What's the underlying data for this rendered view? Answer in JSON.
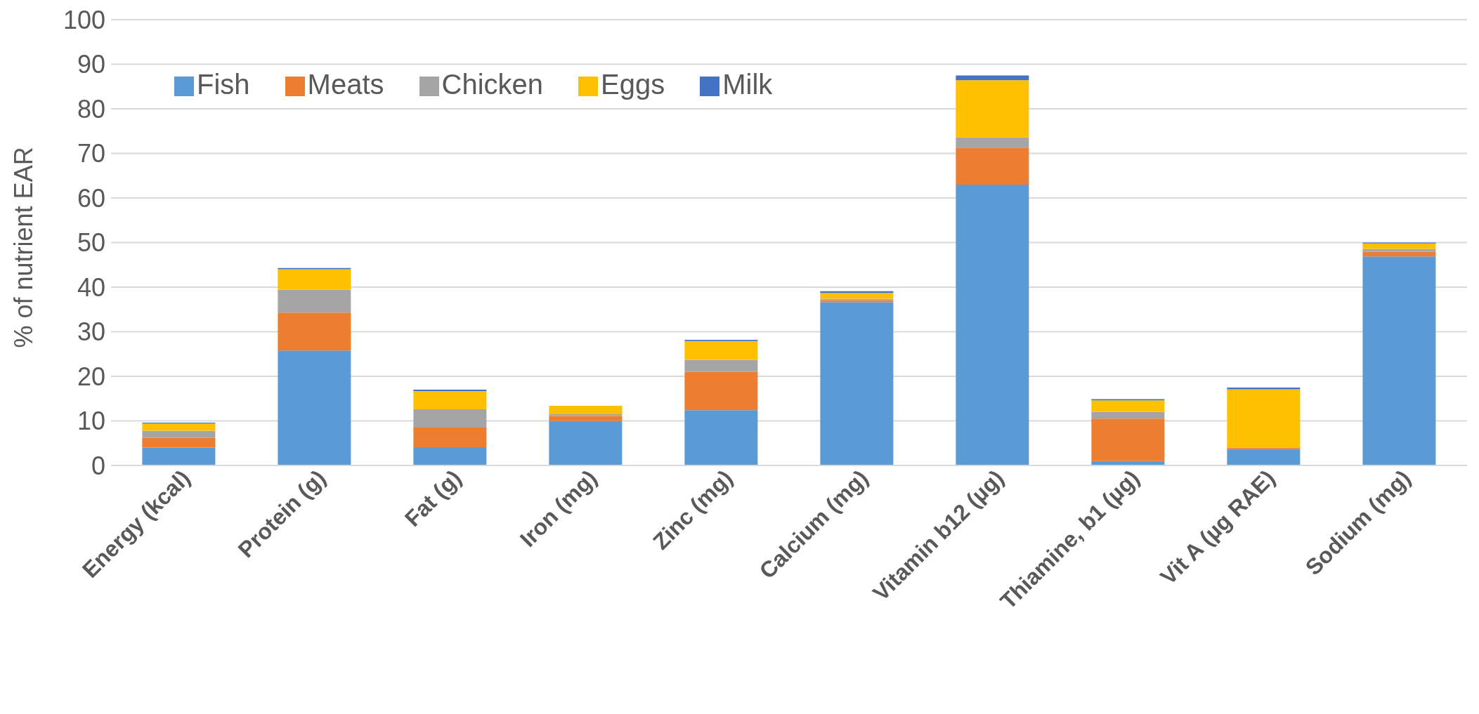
{
  "chart_data": {
    "type": "bar",
    "stacked": true,
    "ylabel": "% of nutrient EAR",
    "categories": [
      "Energy (kcal)",
      "Protein (g)",
      "Fat (g)",
      "Iron (mg)",
      "Zinc (mg)",
      "Calcium (mg)",
      "Vitamin b12 (µg)",
      "Thiamine, b1 (µg)",
      "Vit A (µg RAE)",
      "Sodium (mg)"
    ],
    "series": [
      {
        "name": "Fish",
        "color": "#5b9bd5",
        "values": [
          4.0,
          25.8,
          4.1,
          10.0,
          12.4,
          36.6,
          63.0,
          1.0,
          3.7,
          46.9
        ]
      },
      {
        "name": "Meats",
        "color": "#ed7d31",
        "values": [
          2.2,
          8.5,
          4.4,
          1.1,
          8.6,
          0.5,
          8.3,
          9.5,
          0.3,
          1.0
        ]
      },
      {
        "name": "Chicken",
        "color": "#a5a5a5",
        "values": [
          1.6,
          5.1,
          4.1,
          0.4,
          2.7,
          0.3,
          2.3,
          1.5,
          null,
          0.7
        ]
      },
      {
        "name": "Eggs",
        "color": "#ffc000",
        "values": [
          1.6,
          4.6,
          4.1,
          1.9,
          4.2,
          1.3,
          12.8,
          2.6,
          13.1,
          1.2
        ]
      },
      {
        "name": "Milk",
        "color": "#4472c4",
        "values": [
          0.2,
          0.3,
          0.3,
          0.0,
          0.3,
          0.4,
          1.1,
          0.3,
          0.4,
          0.2
        ]
      }
    ],
    "ylim": [
      0,
      100
    ],
    "yticks": [
      0,
      10,
      20,
      30,
      40,
      50,
      60,
      70,
      80,
      90,
      100
    ],
    "grid": "y",
    "legend": "top left"
  }
}
